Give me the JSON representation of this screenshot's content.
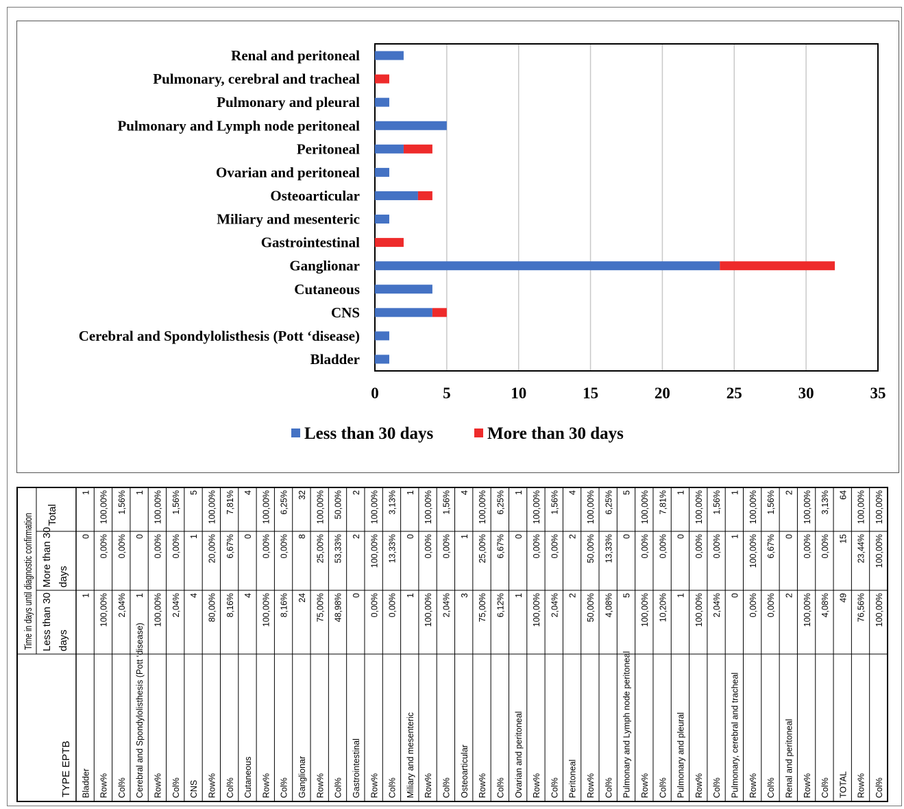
{
  "chart_data": {
    "type": "bar",
    "orientation": "horizontal",
    "stacked": true,
    "categories": [
      "Renal and peritoneal",
      "Pulmonary, cerebral and tracheal",
      "Pulmonary and pleural",
      "Pulmonary and Lymph node peritoneal",
      "Peritoneal",
      "Ovarian and peritoneal",
      "Osteoarticular",
      "Miliary and mesenteric",
      "Gastrointestinal",
      "Ganglionar",
      "Cutaneous",
      "CNS",
      "Cerebral and Spondylolisthesis (Pott ‘disease)",
      "Bladder"
    ],
    "series": [
      {
        "name": "Less than 30 days",
        "color": "#4472C4",
        "values": [
          2,
          0,
          1,
          5,
          2,
          1,
          3,
          1,
          0,
          24,
          4,
          4,
          1,
          1
        ]
      },
      {
        "name": "More than 30 days",
        "color": "#EE2B2B",
        "values": [
          0,
          1,
          0,
          0,
          2,
          0,
          1,
          0,
          2,
          8,
          0,
          1,
          0,
          0
        ]
      }
    ],
    "xlim": [
      0,
      35
    ],
    "xticks": [
      "0",
      "5",
      "10",
      "15",
      "20",
      "25",
      "30",
      "35"
    ],
    "grid": "vertical",
    "legend": "bottom"
  },
  "table": {
    "header_group": "Time in days until diagnostic confirmation",
    "col_type": "TYPE EPTB",
    "col_less": "Less than 30 days",
    "col_more": "More than 30 days",
    "col_total": "Total",
    "rows": [
      {
        "label": "Bladder",
        "less": "1",
        "more": "0",
        "total": "1"
      },
      {
        "label": "Row%",
        "less": "100,00%",
        "more": "0,00%",
        "total": "100,00%"
      },
      {
        "label": "Col%",
        "less": "2,04%",
        "more": "0,00%",
        "total": "1,56%"
      },
      {
        "label": "Cerebral and Spondylolisthesis (Pott ‘disease)",
        "less": "1",
        "more": "0",
        "total": "1"
      },
      {
        "label": "Row%",
        "less": "100,00%",
        "more": "0,00%",
        "total": "100,00%"
      },
      {
        "label": "Col%",
        "less": "2,04%",
        "more": "0,00%",
        "total": "1,56%"
      },
      {
        "label": "CNS",
        "less": "4",
        "more": "1",
        "total": "5"
      },
      {
        "label": "Row%",
        "less": "80,00%",
        "more": "20,00%",
        "total": "100,00%"
      },
      {
        "label": "Col%",
        "less": "8,16%",
        "more": "6,67%",
        "total": "7,81%"
      },
      {
        "label": "Cutaneous",
        "less": "4",
        "more": "0",
        "total": "4"
      },
      {
        "label": "Row%",
        "less": "100,00%",
        "more": "0,00%",
        "total": "100,00%"
      },
      {
        "label": "Col%",
        "less": "8,16%",
        "more": "0,00%",
        "total": "6,25%"
      },
      {
        "label": "Ganglionar",
        "less": "24",
        "more": "8",
        "total": "32"
      },
      {
        "label": "Row%",
        "less": "75,00%",
        "more": "25,00%",
        "total": "100,00%"
      },
      {
        "label": "Col%",
        "less": "48,98%",
        "more": "53,33%",
        "total": "50,00%"
      },
      {
        "label": "Gastrointestinal",
        "less": "0",
        "more": "2",
        "total": "2"
      },
      {
        "label": "Row%",
        "less": "0,00%",
        "more": "100,00%",
        "total": "100,00%"
      },
      {
        "label": "Col%",
        "less": "0,00%",
        "more": "13,33%",
        "total": "3,13%"
      },
      {
        "label": "Miliary and mesenteric",
        "less": "1",
        "more": "0",
        "total": "1"
      },
      {
        "label": "Row%",
        "less": "100,00%",
        "more": "0,00%",
        "total": "100,00%"
      },
      {
        "label": "Col%",
        "less": "2,04%",
        "more": "0,00%",
        "total": "1,56%"
      },
      {
        "label": "Osteoarticular",
        "less": "3",
        "more": "1",
        "total": "4"
      },
      {
        "label": "Row%",
        "less": "75,00%",
        "more": "25,00%",
        "total": "100,00%"
      },
      {
        "label": "Col%",
        "less": "6,12%",
        "more": "6,67%",
        "total": "6,25%"
      },
      {
        "label": "Ovarian and peritoneal",
        "less": "1",
        "more": "0",
        "total": "1"
      },
      {
        "label": "Row%",
        "less": "100,00%",
        "more": "0,00%",
        "total": "100,00%"
      },
      {
        "label": "Col%",
        "less": "2,04%",
        "more": "0,00%",
        "total": "1,56%"
      },
      {
        "label": "Peritoneal",
        "less": "2",
        "more": "2",
        "total": "4"
      },
      {
        "label": "Row%",
        "less": "50,00%",
        "more": "50,00%",
        "total": "100,00%"
      },
      {
        "label": "Col%",
        "less": "4,08%",
        "more": "13,33%",
        "total": "6,25%"
      },
      {
        "label": "Pulmonary and Lymph node peritoneal",
        "less": "5",
        "more": "0",
        "total": "5"
      },
      {
        "label": "Row%",
        "less": "100,00%",
        "more": "0,00%",
        "total": "100,00%"
      },
      {
        "label": "Col%",
        "less": "10,20%",
        "more": "0,00%",
        "total": "7,81%"
      },
      {
        "label": "Pulmonary and pleural",
        "less": "1",
        "more": "0",
        "total": "1"
      },
      {
        "label": "Row%",
        "less": "100,00%",
        "more": "0,00%",
        "total": "100,00%"
      },
      {
        "label": "Col%",
        "less": "2,04%",
        "more": "0,00%",
        "total": "1,56%"
      },
      {
        "label": "Pulmonary, cerebral and tracheal",
        "less": "0",
        "more": "1",
        "total": "1"
      },
      {
        "label": "Row%",
        "less": "0,00%",
        "more": "100,00%",
        "total": "100,00%"
      },
      {
        "label": "Col%",
        "less": "0,00%",
        "more": "6,67%",
        "total": "1,56%"
      },
      {
        "label": "Renal and peritoneal",
        "less": "2",
        "more": "0",
        "total": "2"
      },
      {
        "label": "Row%",
        "less": "100,00%",
        "more": "0,00%",
        "total": "100,00%"
      },
      {
        "label": "Col%",
        "less": "4,08%",
        "more": "0,00%",
        "total": "3,13%"
      },
      {
        "label": "TOTAL",
        "less": "49",
        "more": "15",
        "total": "64"
      },
      {
        "label": "Row%",
        "less": "76,56%",
        "more": "23,44%",
        "total": "100,00%"
      },
      {
        "label": "Col%",
        "less": "100,00%",
        "more": "100,00%",
        "total": "100,00%"
      }
    ]
  }
}
